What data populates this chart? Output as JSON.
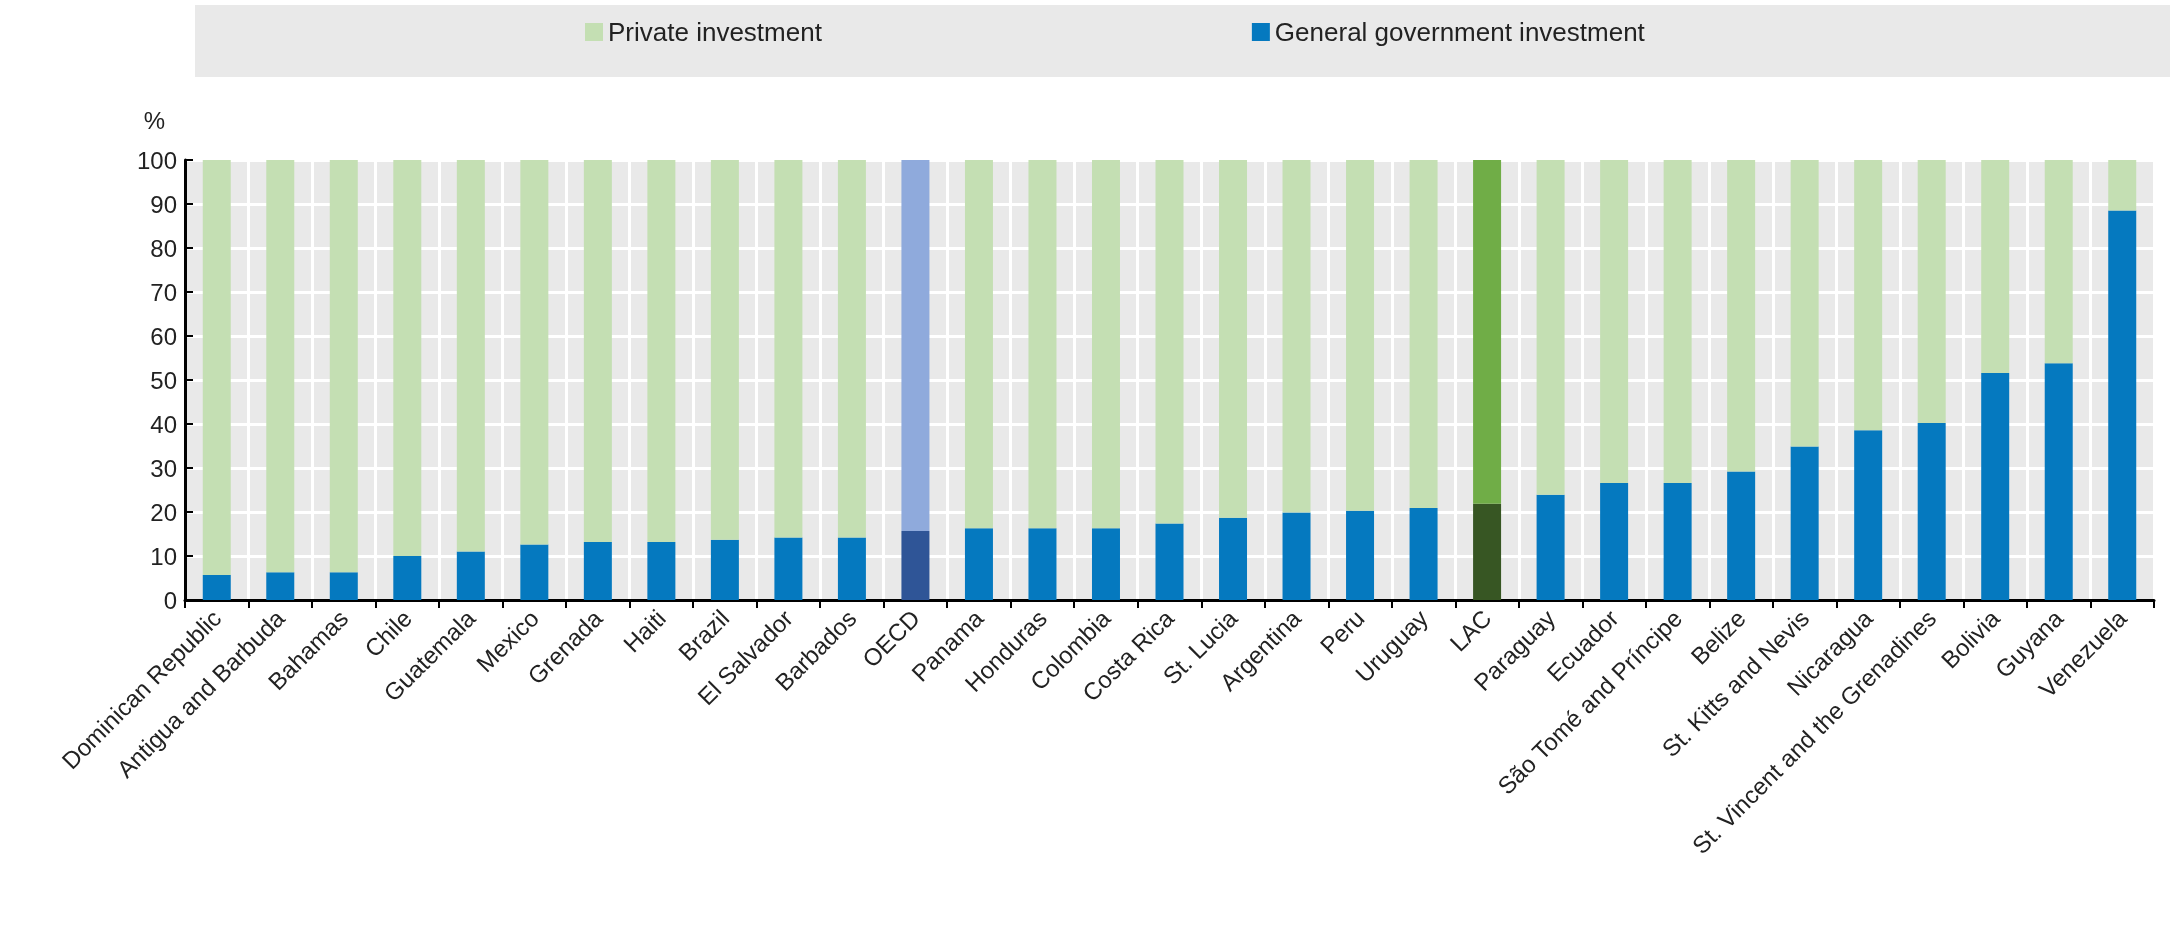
{
  "chart_data": {
    "type": "bar",
    "stacked": true,
    "ylabel": "%",
    "ylim": [
      0,
      100
    ],
    "yticks": [
      0,
      10,
      20,
      30,
      40,
      50,
      60,
      70,
      80,
      90,
      100
    ],
    "grid": true,
    "legend": "top",
    "categories": [
      "Dominican Republic",
      "Antigua and Barbuda",
      "Bahamas",
      "Chile",
      "Guatemala",
      "Mexico",
      "Grenada",
      "Haiti",
      "Brazil",
      "El Salvador",
      "Barbados",
      "OECD",
      "Panama",
      "Honduras",
      "Colombia",
      "Costa Rica",
      "St. Lucia",
      "Argentina",
      "Peru",
      "Uruguay",
      "LAC",
      "Paraguay",
      "Ecuador",
      "São Tomé and Príncipe",
      "Belize",
      "St. Kitts and Nevis",
      "Nicaragua",
      "St. Vincent and the Grenadines",
      "Bolivia",
      "Guyana",
      "Venezuela"
    ],
    "series": [
      {
        "name": "General government investment",
        "color": "#0579bf",
        "colors": [
          "#0579bf",
          "#0579bf",
          "#0579bf",
          "#0579bf",
          "#0579bf",
          "#0579bf",
          "#0579bf",
          "#0579bf",
          "#0579bf",
          "#0579bf",
          "#0579bf",
          "#2f5597",
          "#0579bf",
          "#0579bf",
          "#0579bf",
          "#0579bf",
          "#0579bf",
          "#0579bf",
          "#0579bf",
          "#0579bf",
          "#375623",
          "#0579bf",
          "#0579bf",
          "#0579bf",
          "#0579bf",
          "#0579bf",
          "#0579bf",
          "#0579bf",
          "#0579bf",
          "#0579bf",
          "#0579bf"
        ],
        "values": [
          5.7,
          6.3,
          6.3,
          10,
          11,
          12.6,
          13.2,
          13.2,
          13.7,
          14.2,
          14.2,
          15.7,
          16.3,
          16.3,
          16.3,
          17.4,
          18.7,
          19.9,
          20.3,
          20.9,
          21.9,
          23.9,
          26.6,
          26.6,
          29.2,
          34.9,
          38.6,
          40.2,
          51.6,
          53.8,
          88.5
        ]
      },
      {
        "name": "Private investment",
        "color": "#c4dfb3",
        "colors": [
          "#c4dfb3",
          "#c4dfb3",
          "#c4dfb3",
          "#c4dfb3",
          "#c4dfb3",
          "#c4dfb3",
          "#c4dfb3",
          "#c4dfb3",
          "#c4dfb3",
          "#c4dfb3",
          "#c4dfb3",
          "#8faadc",
          "#c4dfb3",
          "#c4dfb3",
          "#c4dfb3",
          "#c4dfb3",
          "#c4dfb3",
          "#c4dfb3",
          "#c4dfb3",
          "#c4dfb3",
          "#70ad47",
          "#c4dfb3",
          "#c4dfb3",
          "#c4dfb3",
          "#c4dfb3",
          "#c4dfb3",
          "#c4dfb3",
          "#c4dfb3",
          "#c4dfb3",
          "#c4dfb3",
          "#c4dfb3"
        ],
        "values": [
          94.3,
          93.7,
          93.7,
          90,
          89,
          87.4,
          86.8,
          86.8,
          86.3,
          85.8,
          85.8,
          84.3,
          83.7,
          83.7,
          83.7,
          82.6,
          81.3,
          80.1,
          79.7,
          79.1,
          78.1,
          76.1,
          73.4,
          73.4,
          70.8,
          65.1,
          61.4,
          59.8,
          48.4,
          46.2,
          11.5
        ]
      }
    ]
  }
}
